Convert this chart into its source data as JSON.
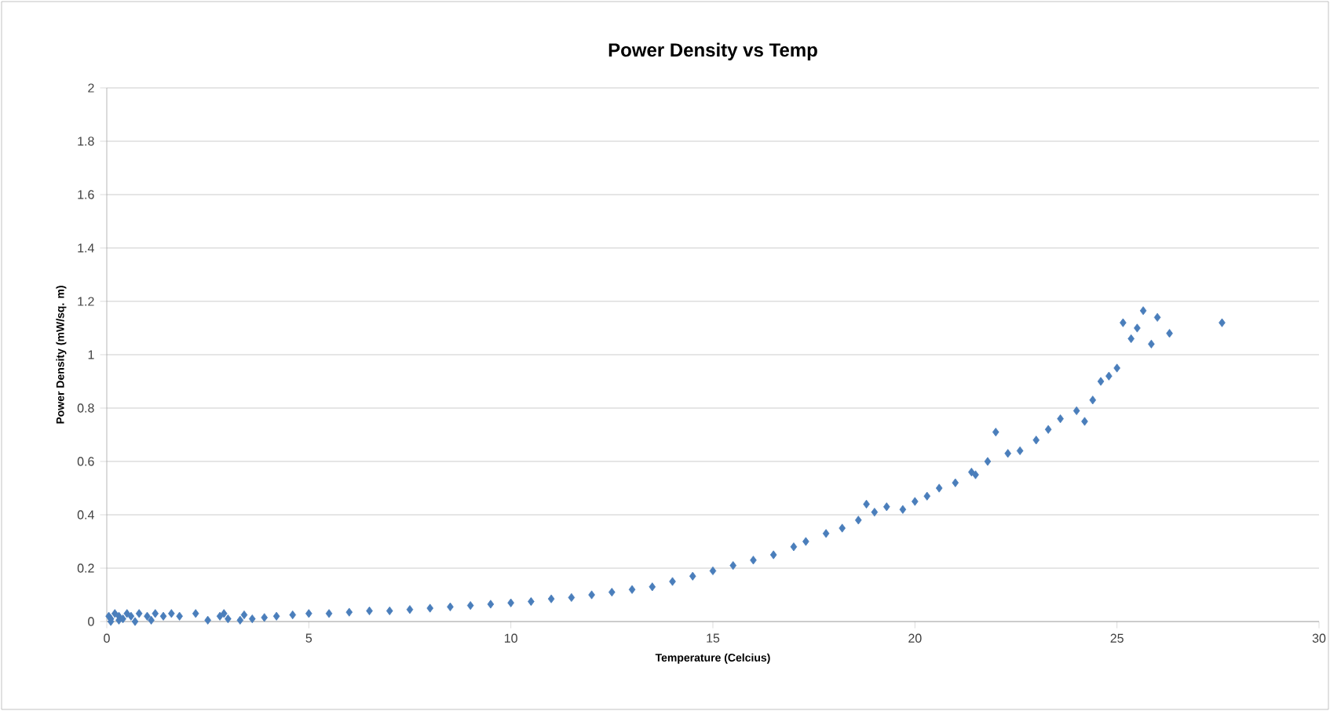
{
  "chart_data": {
    "type": "scatter",
    "title": "Power Density vs Temp",
    "xlabel": "Temperature (Celcius)",
    "ylabel": "Power Density (mW/sq. m)",
    "xlim": [
      0,
      30
    ],
    "xticks": [
      0,
      5,
      10,
      15,
      20,
      25,
      30
    ],
    "ylim": [
      0,
      2
    ],
    "yticks": [
      0,
      0.2,
      0.4,
      0.6,
      0.8,
      1,
      1.2,
      1.4,
      1.6,
      1.8,
      2
    ],
    "grid": "y",
    "marker": "diamond",
    "series": [
      {
        "color": "#4a7ebb",
        "x": [
          0.05,
          0.1,
          0.2,
          0.3,
          0.4,
          0.5,
          0.6,
          0.8,
          1.0,
          1.2,
          1.4,
          1.6,
          1.8,
          2.2,
          2.5,
          2.8,
          3.0,
          3.3,
          3.6,
          3.9,
          4.2,
          4.6,
          5.0,
          5.5,
          6.0,
          6.5,
          7.0,
          7.5,
          8.0,
          8.5,
          9.0,
          9.5,
          10.0,
          10.5,
          11.0,
          11.5,
          12.0,
          12.5,
          13.0,
          13.5,
          14.0,
          14.5,
          15.0,
          15.5,
          16.0,
          16.5,
          17.0,
          17.3,
          17.8,
          18.2,
          18.6,
          19.0,
          19.3,
          19.7,
          20.0,
          20.3,
          20.6,
          21.0,
          21.4,
          21.8,
          22.0,
          22.3,
          22.6,
          23.0,
          23.3,
          23.6,
          24.0,
          24.2,
          24.4,
          24.6,
          24.8,
          25.0,
          25.15,
          25.35,
          25.5,
          25.65,
          25.85,
          26.0,
          26.3,
          27.6,
          0.1,
          0.3,
          0.7,
          1.1,
          2.9,
          3.4,
          18.8,
          21.5
        ],
        "values": [
          0.02,
          0.01,
          0.03,
          0.02,
          0.01,
          0.03,
          0.02,
          0.03,
          0.02,
          0.03,
          0.02,
          0.03,
          0.02,
          0.03,
          0.005,
          0.02,
          0.01,
          0.005,
          0.01,
          0.015,
          0.02,
          0.025,
          0.03,
          0.03,
          0.035,
          0.04,
          0.04,
          0.045,
          0.05,
          0.055,
          0.06,
          0.065,
          0.07,
          0.075,
          0.085,
          0.09,
          0.1,
          0.11,
          0.12,
          0.13,
          0.15,
          0.17,
          0.19,
          0.21,
          0.23,
          0.25,
          0.28,
          0.3,
          0.33,
          0.35,
          0.38,
          0.41,
          0.43,
          0.42,
          0.45,
          0.47,
          0.5,
          0.52,
          0.56,
          0.6,
          0.71,
          0.63,
          0.64,
          0.68,
          0.72,
          0.76,
          0.79,
          0.75,
          0.83,
          0.9,
          0.92,
          0.95,
          1.12,
          1.06,
          1.1,
          1.165,
          1.04,
          1.14,
          1.08,
          1.12,
          0.0,
          0.005,
          0.0,
          0.005,
          0.03,
          0.025,
          0.44,
          0.55
        ]
      }
    ]
  }
}
